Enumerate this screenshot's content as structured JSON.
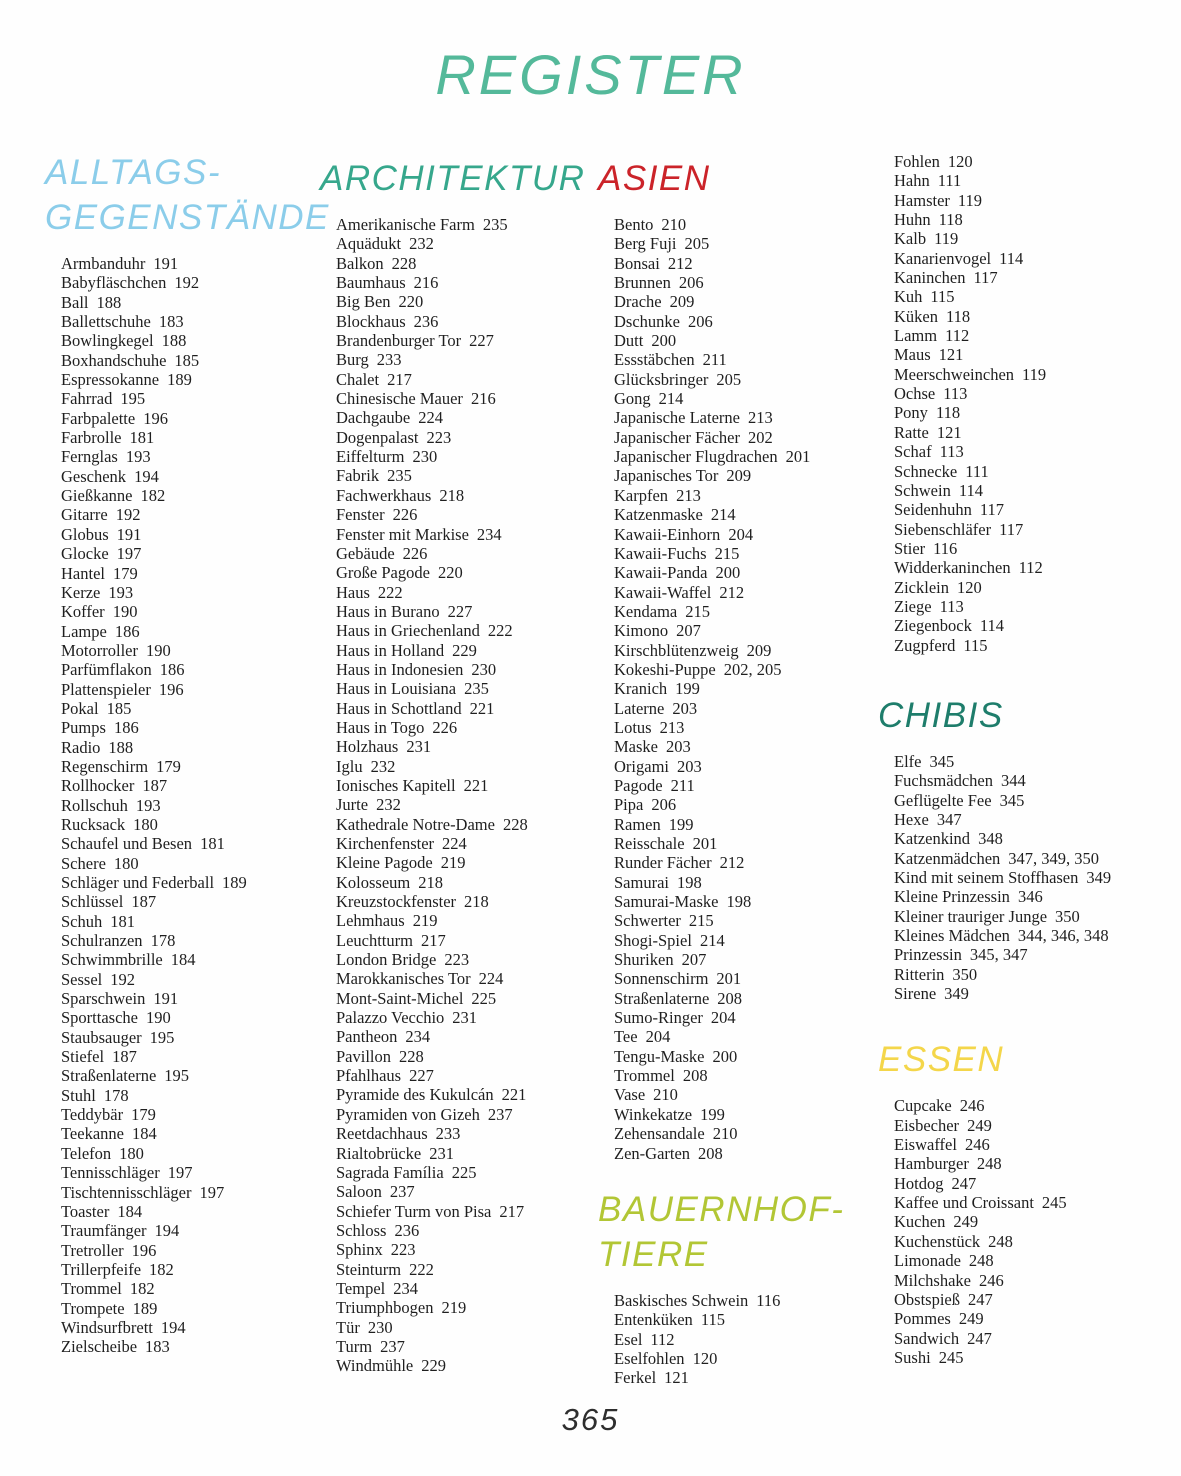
{
  "title": "REGISTER",
  "title_color": "#54b99a",
  "page_number": "365",
  "sections": [
    {
      "id": "alltagsgegenstaende",
      "title_lines": [
        "ALLTAGS-",
        "GEGENSTÄNDE"
      ],
      "color": "#8bcdea",
      "entries": [
        {
          "term": "Armbanduhr",
          "pages": "191"
        },
        {
          "term": "Babyfläschchen",
          "pages": "192"
        },
        {
          "term": "Ball",
          "pages": "188"
        },
        {
          "term": "Ballettschuhe",
          "pages": "183"
        },
        {
          "term": "Bowlingkegel",
          "pages": "188"
        },
        {
          "term": "Boxhandschuhe",
          "pages": "185"
        },
        {
          "term": "Espressokanne",
          "pages": "189"
        },
        {
          "term": "Fahrrad",
          "pages": "195"
        },
        {
          "term": "Farbpalette",
          "pages": "196"
        },
        {
          "term": "Farbrolle",
          "pages": "181"
        },
        {
          "term": "Fernglas",
          "pages": "193"
        },
        {
          "term": "Geschenk",
          "pages": "194"
        },
        {
          "term": "Gießkanne",
          "pages": "182"
        },
        {
          "term": "Gitarre",
          "pages": "192"
        },
        {
          "term": "Globus",
          "pages": "191"
        },
        {
          "term": "Glocke",
          "pages": "197"
        },
        {
          "term": "Hantel",
          "pages": "179"
        },
        {
          "term": "Kerze",
          "pages": "193"
        },
        {
          "term": "Koffer",
          "pages": "190"
        },
        {
          "term": "Lampe",
          "pages": "186"
        },
        {
          "term": "Motorroller",
          "pages": "190"
        },
        {
          "term": "Parfümflakon",
          "pages": "186"
        },
        {
          "term": "Plattenspieler",
          "pages": "196"
        },
        {
          "term": "Pokal",
          "pages": "185"
        },
        {
          "term": "Pumps",
          "pages": "186"
        },
        {
          "term": "Radio",
          "pages": "188"
        },
        {
          "term": "Regenschirm",
          "pages": "179"
        },
        {
          "term": "Rollhocker",
          "pages": "187"
        },
        {
          "term": "Rollschuh",
          "pages": "193"
        },
        {
          "term": "Rucksack",
          "pages": "180"
        },
        {
          "term": "Schaufel und Besen",
          "pages": "181"
        },
        {
          "term": "Schere",
          "pages": "180"
        },
        {
          "term": "Schläger und Federball",
          "pages": "189"
        },
        {
          "term": "Schlüssel",
          "pages": "187"
        },
        {
          "term": "Schuh",
          "pages": "181"
        },
        {
          "term": "Schulranzen",
          "pages": "178"
        },
        {
          "term": "Schwimmbrille",
          "pages": "184"
        },
        {
          "term": "Sessel",
          "pages": "192"
        },
        {
          "term": "Sparschwein",
          "pages": "191"
        },
        {
          "term": "Sporttasche",
          "pages": "190"
        },
        {
          "term": "Staubsauger",
          "pages": "195"
        },
        {
          "term": "Stiefel",
          "pages": "187"
        },
        {
          "term": "Straßenlaterne",
          "pages": "195"
        },
        {
          "term": "Stuhl",
          "pages": "178"
        },
        {
          "term": "Teddybär",
          "pages": "179"
        },
        {
          "term": "Teekanne",
          "pages": "184"
        },
        {
          "term": "Telefon",
          "pages": "180"
        },
        {
          "term": "Tennisschläger",
          "pages": "197"
        },
        {
          "term": "Tischtennisschläger",
          "pages": "197"
        },
        {
          "term": "Toaster",
          "pages": "184"
        },
        {
          "term": "Traumfänger",
          "pages": "194"
        },
        {
          "term": "Tretroller",
          "pages": "196"
        },
        {
          "term": "Trillerpfeife",
          "pages": "182"
        },
        {
          "term": "Trommel",
          "pages": "182"
        },
        {
          "term": "Trompete",
          "pages": "189"
        },
        {
          "term": "Windsurfbrett",
          "pages": "194"
        },
        {
          "term": "Zielscheibe",
          "pages": "183"
        }
      ]
    },
    {
      "id": "architektur",
      "title_lines": [
        "ARCHITEKTUR"
      ],
      "color": "#36a78c",
      "entries": [
        {
          "term": "Amerikanische Farm",
          "pages": "235"
        },
        {
          "term": "Aquädukt",
          "pages": "232"
        },
        {
          "term": "Balkon",
          "pages": "228"
        },
        {
          "term": "Baumhaus",
          "pages": "216"
        },
        {
          "term": "Big Ben",
          "pages": "220"
        },
        {
          "term": "Blockhaus",
          "pages": "236"
        },
        {
          "term": "Brandenburger Tor",
          "pages": "227"
        },
        {
          "term": "Burg",
          "pages": "233"
        },
        {
          "term": "Chalet",
          "pages": "217"
        },
        {
          "term": "Chinesische Mauer",
          "pages": "216"
        },
        {
          "term": "Dachgaube",
          "pages": "224"
        },
        {
          "term": "Dogenpalast",
          "pages": "223"
        },
        {
          "term": "Eiffelturm",
          "pages": "230"
        },
        {
          "term": "Fabrik",
          "pages": "235"
        },
        {
          "term": "Fachwerkhaus",
          "pages": "218"
        },
        {
          "term": "Fenster",
          "pages": "226"
        },
        {
          "term": "Fenster mit Markise",
          "pages": "234"
        },
        {
          "term": "Gebäude",
          "pages": "226"
        },
        {
          "term": "Große Pagode",
          "pages": "220"
        },
        {
          "term": "Haus",
          "pages": "222"
        },
        {
          "term": "Haus in Burano",
          "pages": "227"
        },
        {
          "term": "Haus in Griechenland",
          "pages": "222"
        },
        {
          "term": "Haus in Holland",
          "pages": "229"
        },
        {
          "term": "Haus in Indonesien",
          "pages": "230"
        },
        {
          "term": "Haus in Louisiana",
          "pages": "235"
        },
        {
          "term": "Haus in Schottland",
          "pages": "221"
        },
        {
          "term": "Haus in Togo",
          "pages": "226"
        },
        {
          "term": "Holzhaus",
          "pages": "231"
        },
        {
          "term": "Iglu",
          "pages": "232"
        },
        {
          "term": "Ionisches Kapitell",
          "pages": "221"
        },
        {
          "term": "Jurte",
          "pages": "232"
        },
        {
          "term": "Kathedrale Notre-Dame",
          "pages": "228"
        },
        {
          "term": "Kirchenfenster",
          "pages": "224"
        },
        {
          "term": "Kleine Pagode",
          "pages": "219"
        },
        {
          "term": "Kolosseum",
          "pages": "218"
        },
        {
          "term": "Kreuzstockfenster",
          "pages": "218"
        },
        {
          "term": "Lehmhaus",
          "pages": "219"
        },
        {
          "term": "Leuchtturm",
          "pages": "217"
        },
        {
          "term": "London Bridge",
          "pages": "223"
        },
        {
          "term": "Marokkanisches Tor",
          "pages": "224"
        },
        {
          "term": "Mont-Saint-Michel",
          "pages": "225"
        },
        {
          "term": "Palazzo Vecchio",
          "pages": "231"
        },
        {
          "term": "Pantheon",
          "pages": "234"
        },
        {
          "term": "Pavillon",
          "pages": "228"
        },
        {
          "term": "Pfahlhaus",
          "pages": "227"
        },
        {
          "term": "Pyramide des Kukulcán",
          "pages": "221"
        },
        {
          "term": "Pyramiden von Gizeh",
          "pages": "237"
        },
        {
          "term": "Reetdachhaus",
          "pages": "233"
        },
        {
          "term": "Rialtobrücke",
          "pages": "231"
        },
        {
          "term": "Sagrada Família",
          "pages": "225"
        },
        {
          "term": "Saloon",
          "pages": "237"
        },
        {
          "term": "Schiefer Turm von Pisa",
          "pages": "217"
        },
        {
          "term": "Schloss",
          "pages": "236"
        },
        {
          "term": "Sphinx",
          "pages": "223"
        },
        {
          "term": "Steinturm",
          "pages": "222"
        },
        {
          "term": "Tempel",
          "pages": "234"
        },
        {
          "term": "Triumphbogen",
          "pages": "219"
        },
        {
          "term": "Tür",
          "pages": "230"
        },
        {
          "term": "Turm",
          "pages": "237"
        },
        {
          "term": "Windmühle",
          "pages": "229"
        }
      ]
    },
    {
      "id": "asien",
      "title_lines": [
        "ASIEN"
      ],
      "color": "#cb2329",
      "entries": [
        {
          "term": "Bento",
          "pages": "210"
        },
        {
          "term": "Berg Fuji",
          "pages": "205"
        },
        {
          "term": "Bonsai",
          "pages": "212"
        },
        {
          "term": "Brunnen",
          "pages": "206"
        },
        {
          "term": "Drache",
          "pages": "209"
        },
        {
          "term": "Dschunke",
          "pages": "206"
        },
        {
          "term": "Dutt",
          "pages": "200"
        },
        {
          "term": "Essstäbchen",
          "pages": "211"
        },
        {
          "term": "Glücksbringer",
          "pages": "205"
        },
        {
          "term": "Gong",
          "pages": "214"
        },
        {
          "term": "Japanische Laterne",
          "pages": "213"
        },
        {
          "term": "Japanischer Fächer",
          "pages": "202"
        },
        {
          "term": "Japanischer Flugdrachen",
          "pages": "201"
        },
        {
          "term": "Japanisches Tor",
          "pages": "209"
        },
        {
          "term": "Karpfen",
          "pages": "213"
        },
        {
          "term": "Katzenmaske",
          "pages": "214"
        },
        {
          "term": "Kawaii-Einhorn",
          "pages": "204"
        },
        {
          "term": "Kawaii-Fuchs",
          "pages": "215"
        },
        {
          "term": "Kawaii-Panda",
          "pages": "200"
        },
        {
          "term": "Kawaii-Waffel",
          "pages": "212"
        },
        {
          "term": "Kendama",
          "pages": "215"
        },
        {
          "term": "Kimono",
          "pages": "207"
        },
        {
          "term": "Kirschblütenzweig",
          "pages": "209"
        },
        {
          "term": "Kokeshi-Puppe",
          "pages": "202, 205"
        },
        {
          "term": "Kranich",
          "pages": "199"
        },
        {
          "term": "Laterne",
          "pages": "203"
        },
        {
          "term": "Lotus",
          "pages": "213"
        },
        {
          "term": "Maske",
          "pages": "203"
        },
        {
          "term": "Origami",
          "pages": "203"
        },
        {
          "term": "Pagode",
          "pages": "211"
        },
        {
          "term": "Pipa",
          "pages": "206"
        },
        {
          "term": "Ramen",
          "pages": "199"
        },
        {
          "term": "Reisschale",
          "pages": "201"
        },
        {
          "term": "Runder Fächer",
          "pages": "212"
        },
        {
          "term": "Samurai",
          "pages": "198"
        },
        {
          "term": "Samurai-Maske",
          "pages": "198"
        },
        {
          "term": "Schwerter",
          "pages": "215"
        },
        {
          "term": "Shogi-Spiel",
          "pages": "214"
        },
        {
          "term": "Shuriken",
          "pages": "207"
        },
        {
          "term": "Sonnenschirm",
          "pages": "201"
        },
        {
          "term": "Straßenlaterne",
          "pages": "208"
        },
        {
          "term": "Sumo-Ringer",
          "pages": "204"
        },
        {
          "term": "Tee",
          "pages": "204"
        },
        {
          "term": "Tengu-Maske",
          "pages": "200"
        },
        {
          "term": "Trommel",
          "pages": "208"
        },
        {
          "term": "Vase",
          "pages": "210"
        },
        {
          "term": "Winkekatze",
          "pages": "199"
        },
        {
          "term": "Zehensandale",
          "pages": "210"
        },
        {
          "term": "Zen-Garten",
          "pages": "208"
        }
      ]
    },
    {
      "id": "bauernhoftiere",
      "title_lines": [
        "BAUERNHOF-",
        "TIERE"
      ],
      "color": "#b2c635",
      "entries": [
        {
          "term": "Baskisches Schwein",
          "pages": "116"
        },
        {
          "term": "Entenküken",
          "pages": "115"
        },
        {
          "term": "Esel",
          "pages": "112"
        },
        {
          "term": "Eselfohlen",
          "pages": "120"
        },
        {
          "term": "Ferkel",
          "pages": "121"
        },
        {
          "term": "Fohlen",
          "pages": "120"
        },
        {
          "term": "Hahn",
          "pages": "111"
        },
        {
          "term": "Hamster",
          "pages": "119"
        },
        {
          "term": "Huhn",
          "pages": "118"
        },
        {
          "term": "Kalb",
          "pages": "119"
        },
        {
          "term": "Kanarienvogel",
          "pages": "114"
        },
        {
          "term": "Kaninchen",
          "pages": "117"
        },
        {
          "term": "Kuh",
          "pages": "115"
        },
        {
          "term": "Küken",
          "pages": "118"
        },
        {
          "term": "Lamm",
          "pages": "112"
        },
        {
          "term": "Maus",
          "pages": "121"
        },
        {
          "term": "Meerschweinchen",
          "pages": "119"
        },
        {
          "term": "Ochse",
          "pages": "113"
        },
        {
          "term": "Pony",
          "pages": "118"
        },
        {
          "term": "Ratte",
          "pages": "121"
        },
        {
          "term": "Schaf",
          "pages": "113"
        },
        {
          "term": "Schnecke",
          "pages": "111"
        },
        {
          "term": "Schwein",
          "pages": "114"
        },
        {
          "term": "Seidenhuhn",
          "pages": "117"
        },
        {
          "term": "Siebenschläfer",
          "pages": "117"
        },
        {
          "term": "Stier",
          "pages": "116"
        },
        {
          "term": "Widderkaninchen",
          "pages": "112"
        },
        {
          "term": "Zicklein",
          "pages": "120"
        },
        {
          "term": "Ziege",
          "pages": "113"
        },
        {
          "term": "Ziegenbock",
          "pages": "114"
        },
        {
          "term": "Zugpferd",
          "pages": "115"
        }
      ]
    },
    {
      "id": "chibis",
      "title_lines": [
        "CHIBIS"
      ],
      "color": "#1e7d6b",
      "entries": [
        {
          "term": "Elfe",
          "pages": "345"
        },
        {
          "term": "Fuchsmädchen",
          "pages": "344"
        },
        {
          "term": "Geflügelte Fee",
          "pages": "345"
        },
        {
          "term": "Hexe",
          "pages": "347"
        },
        {
          "term": "Katzenkind",
          "pages": "348"
        },
        {
          "term": "Katzenmädchen",
          "pages": "347, 349, 350"
        },
        {
          "term": "Kind mit seinem Stoffhasen",
          "pages": "349"
        },
        {
          "term": "Kleine Prinzessin",
          "pages": "346"
        },
        {
          "term": "Kleiner trauriger Junge",
          "pages": "350"
        },
        {
          "term": "Kleines Mädchen",
          "pages": "344, 346, 348"
        },
        {
          "term": "Prinzessin",
          "pages": "345, 347"
        },
        {
          "term": "Ritterin",
          "pages": "350"
        },
        {
          "term": "Sirene",
          "pages": "349"
        }
      ]
    },
    {
      "id": "essen",
      "title_lines": [
        "ESSEN"
      ],
      "color": "#f4d64a",
      "entries": [
        {
          "term": "Cupcake",
          "pages": "246"
        },
        {
          "term": "Eisbecher",
          "pages": "249"
        },
        {
          "term": "Eiswaffel",
          "pages": "246"
        },
        {
          "term": "Hamburger",
          "pages": "248"
        },
        {
          "term": "Hotdog",
          "pages": "247"
        },
        {
          "term": "Kaffee und Croissant",
          "pages": "245"
        },
        {
          "term": "Kuchen",
          "pages": "249"
        },
        {
          "term": "Kuchenstück",
          "pages": "248"
        },
        {
          "term": "Limonade",
          "pages": "248"
        },
        {
          "term": "Milchshake",
          "pages": "246"
        },
        {
          "term": "Obstspieß",
          "pages": "247"
        },
        {
          "term": "Pommes",
          "pages": "249"
        },
        {
          "term": "Sandwich",
          "pages": "247"
        },
        {
          "term": "Sushi",
          "pages": "245"
        }
      ]
    }
  ]
}
